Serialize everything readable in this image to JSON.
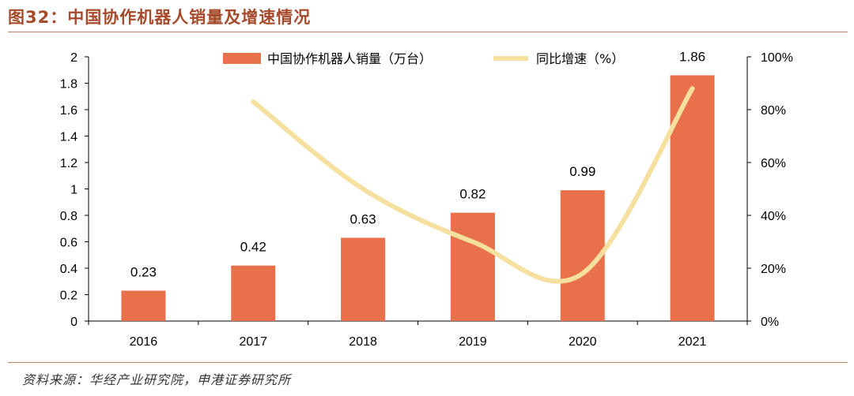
{
  "figure": {
    "title": "图32：中国协作机器人销量及增速情况",
    "source": "资料来源：华经产业研究院，申港证券研究所"
  },
  "colors": {
    "bar": "#e8704a",
    "line": "#f5e0a0",
    "rule": "#b5826c",
    "title": "#a54a2b"
  },
  "chart_data": {
    "type": "bar",
    "categories": [
      "2016",
      "2017",
      "2018",
      "2019",
      "2020",
      "2021"
    ],
    "series": [
      {
        "name": "中国协作机器人销量（万台）",
        "type": "bar",
        "axis": "left",
        "values": [
          0.23,
          0.42,
          0.63,
          0.82,
          0.99,
          1.86
        ]
      },
      {
        "name": "同比增速（%）",
        "type": "line",
        "axis": "right",
        "values": [
          null,
          83,
          50,
          30,
          18,
          88
        ]
      }
    ],
    "data_labels": [
      "0.23",
      "0.42",
      "0.63",
      "0.82",
      "0.99",
      "1.86"
    ],
    "ylim_left": [
      0,
      2
    ],
    "yticks_left": [
      "0",
      "0.2",
      "0.4",
      "0.6",
      "0.8",
      "1",
      "1.2",
      "1.4",
      "1.6",
      "1.8",
      "2"
    ],
    "ylim_right": [
      0,
      100
    ],
    "yticks_right": [
      "0%",
      "20%",
      "40%",
      "60%",
      "80%",
      "100%"
    ],
    "legend_position": "top",
    "grid": false
  }
}
